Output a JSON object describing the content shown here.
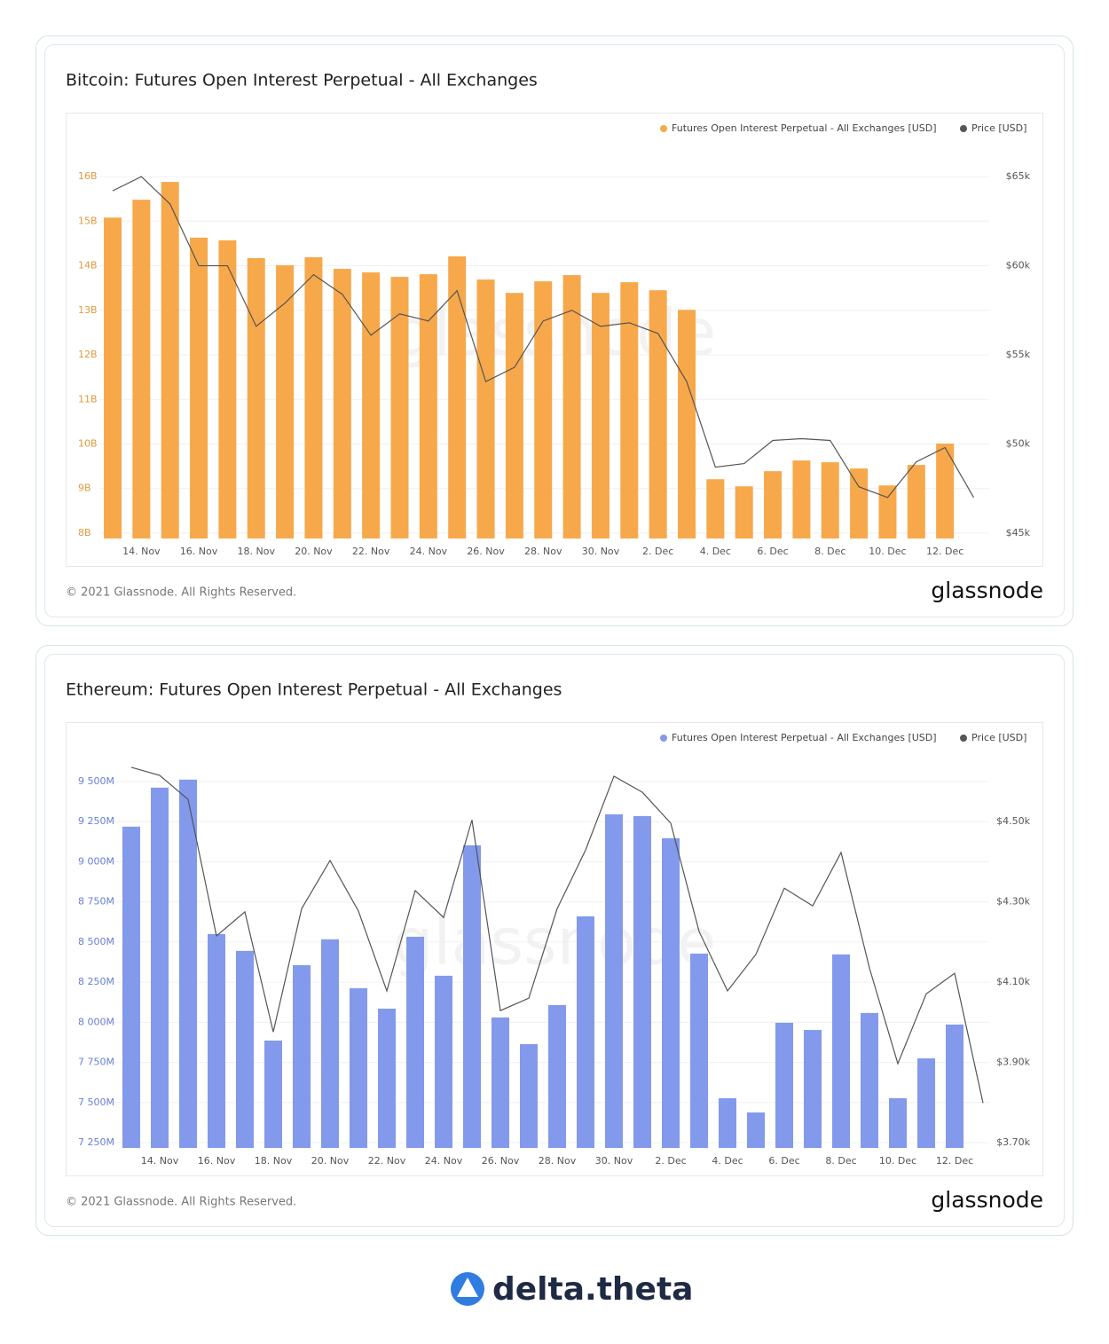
{
  "chart_data": [
    {
      "type": "bar",
      "title": "Bitcoin: Futures Open Interest Perpetual - All Exchanges",
      "watermark": "glassnode",
      "categories": [
        null,
        "14. Nov",
        null,
        "16. Nov",
        null,
        "18. Nov",
        null,
        "20. Nov",
        null,
        "22. Nov",
        null,
        "24. Nov",
        null,
        "26. Nov",
        null,
        "28. Nov",
        null,
        "30. Nov",
        null,
        "2. Dec",
        null,
        "4. Dec",
        null,
        "6. Dec",
        null,
        "8. Dec",
        null,
        "10. Dec",
        null,
        "12. Dec",
        null
      ],
      "series": [
        {
          "name": "Futures Open Interest Perpetual - All Exchanges [USD]",
          "color": "#f7a84a",
          "type": "bar",
          "values": [
            15.08,
            15.48,
            15.88,
            14.63,
            14.57,
            14.17,
            14.01,
            14.19,
            13.93,
            13.85,
            13.75,
            13.81,
            14.21,
            13.69,
            13.39,
            13.65,
            13.79,
            13.39,
            13.63,
            13.45,
            13.01,
            9.21,
            9.05,
            9.39,
            9.63,
            9.59,
            9.45,
            9.07,
            9.53,
            10.01,
            null
          ]
        },
        {
          "name": "Price [USD]",
          "color": "#555555",
          "type": "line",
          "axis": "y2",
          "values": [
            64200,
            65000,
            63460,
            60000,
            60000,
            56600,
            57900,
            59500,
            58400,
            56100,
            57300,
            56900,
            58600,
            53500,
            54300,
            56900,
            57500,
            56600,
            56800,
            56200,
            53500,
            48700,
            48900,
            50200,
            50300,
            50200,
            47600,
            47000,
            49000,
            49800,
            47000
          ]
        }
      ],
      "ylim": [
        7.88,
        16.28
      ],
      "yticks": [
        {
          "value": 8,
          "label": "8B"
        },
        {
          "value": 9,
          "label": "9B"
        },
        {
          "value": 10,
          "label": "10B"
        },
        {
          "value": 11,
          "label": "11B"
        },
        {
          "value": 12,
          "label": "12B"
        },
        {
          "value": 13,
          "label": "13B"
        },
        {
          "value": 14,
          "label": "14B"
        },
        {
          "value": 15,
          "label": "15B"
        },
        {
          "value": 16,
          "label": "16B"
        }
      ],
      "y2lim": [
        44700,
        65700
      ],
      "y2ticks": [
        {
          "value": 45000,
          "label": "$45k"
        },
        {
          "value": 50000,
          "label": "$50k"
        },
        {
          "value": 55000,
          "label": "$55k"
        },
        {
          "value": 60000,
          "label": "$60k"
        },
        {
          "value": 65000,
          "label": "$65k"
        }
      ],
      "grid": true,
      "legend": "top-right",
      "ytick_color": "#e09a3f"
    },
    {
      "type": "bar",
      "title": "Ethereum: Futures Open Interest Perpetual - All Exchanges",
      "watermark": "glassnode",
      "categories": [
        null,
        "14. Nov",
        null,
        "16. Nov",
        null,
        "18. Nov",
        null,
        "20. Nov",
        null,
        "22. Nov",
        null,
        "24. Nov",
        null,
        "26. Nov",
        null,
        "28. Nov",
        null,
        "30. Nov",
        null,
        "2. Dec",
        null,
        "4. Dec",
        null,
        "6. Dec",
        null,
        "8. Dec",
        null,
        "10. Dec",
        null,
        "12. Dec",
        null
      ],
      "series": [
        {
          "name": "Futures Open Interest Perpetual - All Exchanges [USD]",
          "color": "#8399ec",
          "type": "bar",
          "values": [
            9219,
            9462,
            9512,
            8550,
            8445,
            7886,
            8356,
            8517,
            8212,
            8085,
            8533,
            8290,
            9103,
            8030,
            7864,
            8107,
            8660,
            9296,
            9285,
            9147,
            8428,
            7527,
            7438,
            7997,
            7952,
            8423,
            8058,
            7527,
            7775,
            7986,
            null
          ]
        },
        {
          "name": "Price [USD]",
          "color": "#555555",
          "type": "line",
          "axis": "y2",
          "values": [
            4635,
            4615,
            4555,
            4215,
            4275,
            3976,
            4283,
            4403,
            4277,
            4078,
            4328,
            4261,
            4504,
            4029,
            4060,
            4283,
            4429,
            4613,
            4573,
            4496,
            4226,
            4078,
            4169,
            4334,
            4290,
            4423,
            4135,
            3897,
            4071,
            4122,
            3799
          ]
        }
      ],
      "ylim": [
        7217,
        9616
      ],
      "yticks": [
        {
          "value": 7250,
          "label": "7 250M"
        },
        {
          "value": 7500,
          "label": "7 500M"
        },
        {
          "value": 7750,
          "label": "7 750M"
        },
        {
          "value": 8000,
          "label": "8 000M"
        },
        {
          "value": 8250,
          "label": "8 250M"
        },
        {
          "value": 8500,
          "label": "8 500M"
        },
        {
          "value": 8750,
          "label": "8 750M"
        },
        {
          "value": 9000,
          "label": "9 000M"
        },
        {
          "value": 9250,
          "label": "9 250M"
        },
        {
          "value": 9500,
          "label": "9 500M"
        }
      ],
      "y2lim": [
        3687,
        4646
      ],
      "y2ticks": [
        {
          "value": 3700,
          "label": "$3.70k"
        },
        {
          "value": 3900,
          "label": "$3.90k"
        },
        {
          "value": 4100,
          "label": "$4.10k"
        },
        {
          "value": 4300,
          "label": "$4.30k"
        },
        {
          "value": 4500,
          "label": "$4.50k"
        }
      ],
      "grid": true,
      "legend": "top-right",
      "ytick_color": "#6a7fd8"
    }
  ],
  "cards": [
    {
      "copyright": "© 2021 Glassnode. All Rights Reserved.",
      "logo": "glassnode"
    },
    {
      "copyright": "© 2021 Glassnode. All Rights Reserved.",
      "logo": "glassnode"
    }
  ],
  "brand": "delta.theta"
}
